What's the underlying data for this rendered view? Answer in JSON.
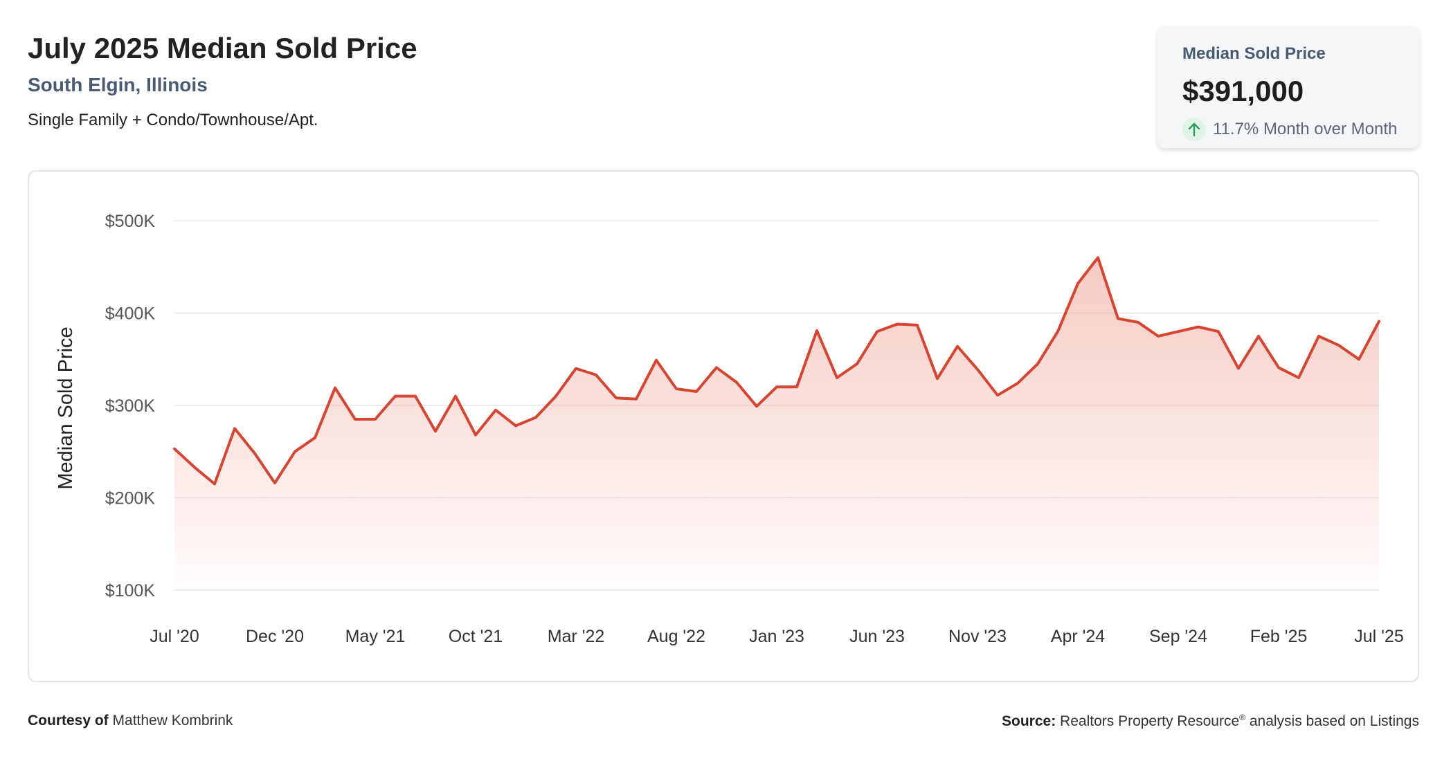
{
  "header": {
    "title": "July 2025 Median Sold Price",
    "location": "South Elgin, Illinois",
    "property_types": "Single Family + Condo/Townhouse/Apt."
  },
  "stat_card": {
    "label": "Median Sold Price",
    "value": "$391,000",
    "change": "11.7% Month over Month",
    "arrow_icon": "arrow-up-icon",
    "up_color": "#2e9d5b"
  },
  "footer": {
    "courtesy_label": "Courtesy of",
    "courtesy_name": "Matthew Kombrink",
    "source_label": "Source:",
    "source_text": "Realtors Property Resource",
    "source_mark": "®",
    "source_suffix": " analysis based on Listings"
  },
  "chart_data": {
    "type": "area",
    "ylabel": "Median Sold Price",
    "xlabel": "",
    "ylim": [
      100000,
      500000
    ],
    "yticks": [
      100000,
      200000,
      300000,
      400000,
      500000
    ],
    "ytick_labels": [
      "$100K",
      "$200K",
      "$300K",
      "$400K",
      "$500K"
    ],
    "xtick_labels": [
      "Jul '20",
      "Dec '20",
      "May '21",
      "Oct '21",
      "Mar '22",
      "Aug '22",
      "Jan '23",
      "Jun '23",
      "Nov '23",
      "Apr '24",
      "Sep '24",
      "Feb '25",
      "Jul '25"
    ],
    "xtick_every": 5,
    "grid": true,
    "line_color": "#d64531",
    "fill_color": "#f3b5ad",
    "x": [
      "2020-07",
      "2020-08",
      "2020-09",
      "2020-10",
      "2020-11",
      "2020-12",
      "2021-01",
      "2021-02",
      "2021-03",
      "2021-04",
      "2021-05",
      "2021-06",
      "2021-07",
      "2021-08",
      "2021-09",
      "2021-10",
      "2021-11",
      "2021-12",
      "2022-01",
      "2022-02",
      "2022-03",
      "2022-04",
      "2022-05",
      "2022-06",
      "2022-07",
      "2022-08",
      "2022-09",
      "2022-10",
      "2022-11",
      "2022-12",
      "2023-01",
      "2023-02",
      "2023-03",
      "2023-04",
      "2023-05",
      "2023-06",
      "2023-07",
      "2023-08",
      "2023-09",
      "2023-10",
      "2023-11",
      "2023-12",
      "2024-01",
      "2024-02",
      "2024-03",
      "2024-04",
      "2024-05",
      "2024-06",
      "2024-07",
      "2024-08",
      "2024-09",
      "2024-10",
      "2024-11",
      "2024-12",
      "2025-01",
      "2025-02",
      "2025-03",
      "2025-04",
      "2025-05",
      "2025-06",
      "2025-07"
    ],
    "values": [
      253000,
      233000,
      215000,
      275000,
      248000,
      216000,
      250000,
      265000,
      319000,
      285000,
      285000,
      310000,
      310000,
      272000,
      310000,
      268000,
      295000,
      278000,
      287000,
      310000,
      340000,
      333000,
      308000,
      307000,
      349000,
      318000,
      315000,
      341000,
      325000,
      299000,
      320000,
      320000,
      381000,
      330000,
      345000,
      380000,
      388000,
      387000,
      329000,
      364000,
      339000,
      311000,
      324000,
      345000,
      380000,
      432000,
      460000,
      394000,
      390000,
      375000,
      380000,
      385000,
      380000,
      340000,
      375000,
      341000,
      330000,
      375000,
      365000,
      350000,
      391000
    ]
  }
}
